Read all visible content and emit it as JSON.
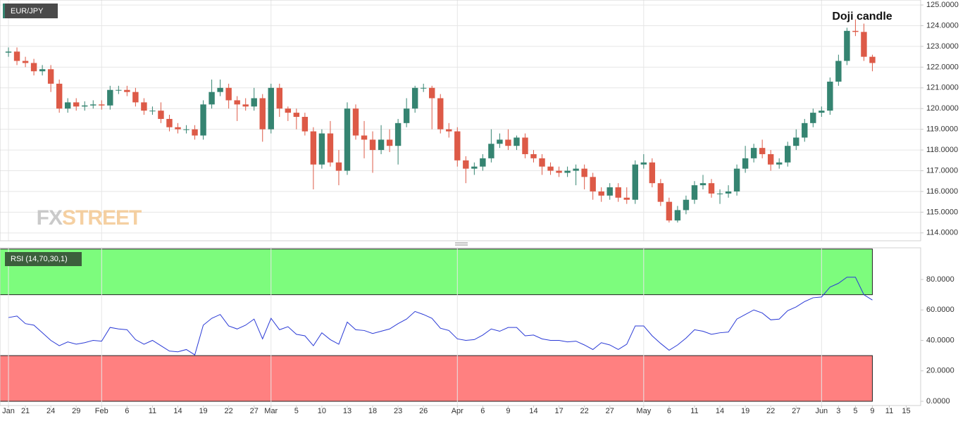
{
  "chart_data": [
    {
      "type": "candlestick",
      "legend": "EUR/JPY",
      "annotation": "Doji candle",
      "watermark": [
        "FX",
        "STREET"
      ],
      "up_color": "#358471",
      "down_color": "#dd5a47",
      "grid": true,
      "xlim": [
        -1,
        107.7
      ],
      "ylim": [
        113.62,
        125.24
      ],
      "yticks": [
        {
          "value": 114,
          "label": "114.0000"
        },
        {
          "value": 115,
          "label": "115.0000"
        },
        {
          "value": 116,
          "label": "116.0000"
        },
        {
          "value": 117,
          "label": "117.0000"
        },
        {
          "value": 118,
          "label": "118.0000"
        },
        {
          "value": 119,
          "label": "119.0000"
        },
        {
          "value": 120,
          "label": "120.0000"
        },
        {
          "value": 121,
          "label": "121.0000"
        },
        {
          "value": 122,
          "label": "122.0000"
        },
        {
          "value": 123,
          "label": "123.0000"
        },
        {
          "value": 124,
          "label": "124.0000"
        },
        {
          "value": 125,
          "label": "125.0000"
        }
      ],
      "open": [
        122.7,
        122.75,
        122.3,
        122.2,
        121.8,
        121.9,
        121.2,
        120.0,
        120.3,
        120.1,
        120.15,
        120.2,
        120.15,
        120.9,
        120.9,
        120.8,
        120.3,
        119.9,
        119.9,
        119.5,
        119.1,
        119.0,
        119.0,
        118.7,
        120.2,
        120.8,
        121.0,
        120.4,
        120.2,
        120.1,
        120.5,
        119.0,
        121.0,
        120.0,
        119.8,
        119.6,
        118.9,
        117.3,
        118.8,
        117.4,
        117.0,
        120.0,
        118.7,
        118.5,
        118.0,
        118.5,
        118.2,
        119.3,
        120.0,
        121.0,
        121.0,
        120.5,
        119.0,
        118.9,
        117.5,
        117.1,
        117.2,
        117.6,
        118.3,
        118.5,
        118.2,
        118.6,
        117.8,
        117.6,
        117.2,
        117.0,
        116.9,
        117.0,
        117.1,
        116.7,
        116.0,
        115.8,
        116.2,
        115.7,
        115.6,
        117.3,
        117.4,
        116.4,
        115.5,
        114.6,
        115.1,
        115.6,
        116.3,
        116.4,
        115.9,
        115.9,
        116.0,
        117.1,
        117.6,
        118.1,
        117.8,
        117.3,
        117.4,
        118.2,
        118.6,
        119.3,
        119.8,
        119.9,
        121.3,
        122.3,
        123.75,
        123.7,
        122.5
      ],
      "high": [
        122.95,
        122.95,
        122.5,
        122.4,
        122.1,
        122.1,
        121.4,
        120.5,
        120.5,
        120.35,
        120.4,
        120.4,
        121.1,
        121.1,
        121.1,
        121.0,
        120.5,
        120.1,
        120.3,
        119.7,
        119.3,
        119.2,
        119.2,
        120.4,
        121.4,
        121.4,
        121.2,
        120.6,
        120.5,
        121.0,
        120.7,
        121.2,
        121.2,
        120.1,
        120.0,
        119.8,
        119.1,
        119.0,
        119.4,
        118.0,
        120.3,
        120.2,
        119.4,
        118.9,
        119.2,
        119.0,
        119.5,
        120.5,
        121.1,
        121.2,
        121.1,
        120.7,
        119.3,
        119.1,
        117.7,
        117.4,
        117.8,
        119.0,
        118.8,
        119.0,
        118.7,
        118.8,
        118.0,
        117.8,
        117.4,
        117.2,
        117.2,
        117.3,
        117.3,
        116.9,
        116.2,
        116.4,
        116.4,
        116.2,
        117.5,
        117.8,
        117.6,
        116.6,
        115.7,
        115.3,
        115.8,
        116.5,
        116.8,
        116.6,
        116.1,
        116.3,
        117.3,
        118.2,
        118.3,
        118.5,
        118.0,
        117.6,
        118.4,
        119.0,
        119.5,
        120.0,
        120.1,
        121.5,
        122.6,
        123.9,
        124.3,
        124.1,
        122.6
      ],
      "low": [
        122.5,
        122.1,
        122.0,
        121.6,
        121.6,
        120.8,
        119.8,
        119.8,
        119.9,
        119.9,
        120.0,
        119.95,
        119.95,
        120.7,
        120.6,
        120.1,
        119.7,
        119.7,
        119.3,
        118.9,
        118.8,
        118.8,
        118.5,
        118.5,
        120.0,
        120.6,
        120.0,
        119.4,
        119.9,
        119.9,
        118.4,
        118.8,
        119.6,
        119.4,
        119.0,
        118.7,
        116.1,
        117.1,
        117.2,
        116.3,
        116.8,
        118.5,
        117.6,
        116.9,
        117.8,
        117.9,
        117.3,
        119.1,
        119.8,
        120.8,
        119.0,
        118.8,
        118.6,
        117.2,
        116.4,
        116.8,
        117.0,
        117.4,
        118.1,
        118.0,
        118.0,
        117.6,
        117.4,
        116.8,
        116.8,
        116.7,
        116.7,
        116.3,
        116.1,
        115.6,
        115.5,
        115.6,
        115.5,
        115.4,
        115.4,
        117.1,
        116.2,
        115.3,
        114.5,
        114.5,
        114.9,
        115.4,
        116.1,
        115.7,
        115.4,
        115.7,
        115.8,
        116.9,
        117.4,
        117.6,
        117.0,
        117.1,
        117.2,
        118.0,
        118.4,
        119.1,
        119.6,
        119.7,
        121.1,
        122.1,
        123.5,
        122.3,
        121.8
      ],
      "close": [
        122.75,
        122.3,
        122.2,
        121.8,
        121.9,
        121.2,
        120.0,
        120.3,
        120.1,
        120.15,
        120.2,
        120.15,
        120.9,
        120.9,
        120.8,
        120.3,
        119.9,
        119.9,
        119.5,
        119.1,
        119.0,
        119.0,
        118.7,
        120.2,
        120.8,
        121.0,
        120.4,
        120.2,
        120.1,
        120.5,
        119.0,
        121.0,
        120.0,
        119.8,
        119.6,
        118.9,
        117.3,
        118.8,
        117.4,
        117.0,
        120.0,
        118.7,
        118.5,
        118.0,
        118.5,
        118.2,
        119.3,
        120.0,
        121.0,
        121.0,
        120.5,
        119.0,
        118.9,
        117.5,
        117.1,
        117.2,
        117.6,
        118.3,
        118.5,
        118.2,
        118.6,
        117.8,
        117.6,
        117.2,
        117.0,
        116.9,
        117.0,
        117.1,
        116.7,
        116.0,
        115.8,
        116.2,
        115.7,
        115.6,
        117.3,
        117.4,
        116.4,
        115.5,
        114.6,
        115.1,
        115.6,
        116.3,
        116.4,
        115.9,
        115.9,
        116.0,
        117.1,
        117.6,
        118.1,
        117.8,
        117.3,
        117.4,
        118.2,
        118.6,
        119.3,
        119.8,
        119.9,
        121.3,
        122.3,
        123.75,
        123.7,
        122.5,
        122.2
      ]
    },
    {
      "type": "line",
      "xlim": [
        -1,
        107.7
      ],
      "ylim": [
        -2.77,
        100.8
      ],
      "yticks": [
        {
          "value": 0,
          "label": "0.0000"
        },
        {
          "value": 20,
          "label": "20.0000"
        },
        {
          "value": 40,
          "label": "40.0000"
        },
        {
          "value": 60,
          "label": "60.0000"
        },
        {
          "value": 80,
          "label": "80.0000"
        }
      ],
      "zones": [
        {
          "from": 70,
          "to": 100,
          "color": "#7dfc7d"
        },
        {
          "from": 0,
          "to": 30,
          "color": "#ff8080"
        }
      ],
      "series": [
        {
          "name": "RSI (14,70,30,1)",
          "color": "#2a3ad6",
          "values": [
            55,
            56,
            51,
            50,
            45,
            40,
            36.5,
            39,
            37.5,
            38.5,
            40,
            39.5,
            48.5,
            47.5,
            47,
            40.5,
            37.5,
            40,
            36.5,
            33,
            32.5,
            34,
            30.5,
            50,
            54.5,
            57,
            49.5,
            47.5,
            50,
            54,
            41,
            54.5,
            47,
            49,
            44,
            43,
            36.5,
            45,
            40.5,
            37.5,
            52,
            47,
            46.5,
            44.5,
            46,
            47.5,
            51,
            54,
            59,
            57,
            54.5,
            48,
            46.5,
            41,
            40,
            40.5,
            43.5,
            47.5,
            46,
            48.5,
            48.5,
            43,
            43.5,
            41,
            40,
            40,
            39,
            39.5,
            37,
            34,
            38.5,
            37,
            34,
            37.5,
            49.5,
            49.5,
            43,
            38,
            33.5,
            37,
            41.5,
            47,
            46,
            44,
            45,
            45.5,
            54,
            57,
            60,
            58,
            53.5,
            54,
            59.5,
            62,
            65.5,
            68,
            68.5,
            75,
            77.5,
            81.5,
            81.5,
            70,
            66.5
          ]
        }
      ],
      "xticks": [
        {
          "value": 0,
          "label": "Jan"
        },
        {
          "value": 2,
          "label": "21"
        },
        {
          "value": 5,
          "label": "24"
        },
        {
          "value": 8,
          "label": "29"
        },
        {
          "value": 11,
          "label": "Feb"
        },
        {
          "value": 14,
          "label": "6"
        },
        {
          "value": 17,
          "label": "11"
        },
        {
          "value": 20,
          "label": "14"
        },
        {
          "value": 23,
          "label": "19"
        },
        {
          "value": 26,
          "label": "22"
        },
        {
          "value": 29,
          "label": "27"
        },
        {
          "value": 31,
          "label": "Mar"
        },
        {
          "value": 34,
          "label": "5"
        },
        {
          "value": 37,
          "label": "10"
        },
        {
          "value": 40,
          "label": "13"
        },
        {
          "value": 43,
          "label": "18"
        },
        {
          "value": 46,
          "label": "23"
        },
        {
          "value": 49,
          "label": "26"
        },
        {
          "value": 53,
          "label": "Apr"
        },
        {
          "value": 56,
          "label": "6"
        },
        {
          "value": 59,
          "label": "9"
        },
        {
          "value": 62,
          "label": "14"
        },
        {
          "value": 65,
          "label": "17"
        },
        {
          "value": 68,
          "label": "22"
        },
        {
          "value": 71,
          "label": "27"
        },
        {
          "value": 75,
          "label": "May"
        },
        {
          "value": 78,
          "label": "6"
        },
        {
          "value": 81,
          "label": "11"
        },
        {
          "value": 84,
          "label": "14"
        },
        {
          "value": 87,
          "label": "19"
        },
        {
          "value": 90,
          "label": "22"
        },
        {
          "value": 93,
          "label": "27"
        },
        {
          "value": 96,
          "label": "Jun"
        },
        {
          "value": 98,
          "label": "3"
        },
        {
          "value": 100,
          "label": "5"
        },
        {
          "value": 102,
          "label": "9"
        },
        {
          "value": 104,
          "label": "11"
        },
        {
          "value": 106,
          "label": "15"
        }
      ]
    }
  ]
}
